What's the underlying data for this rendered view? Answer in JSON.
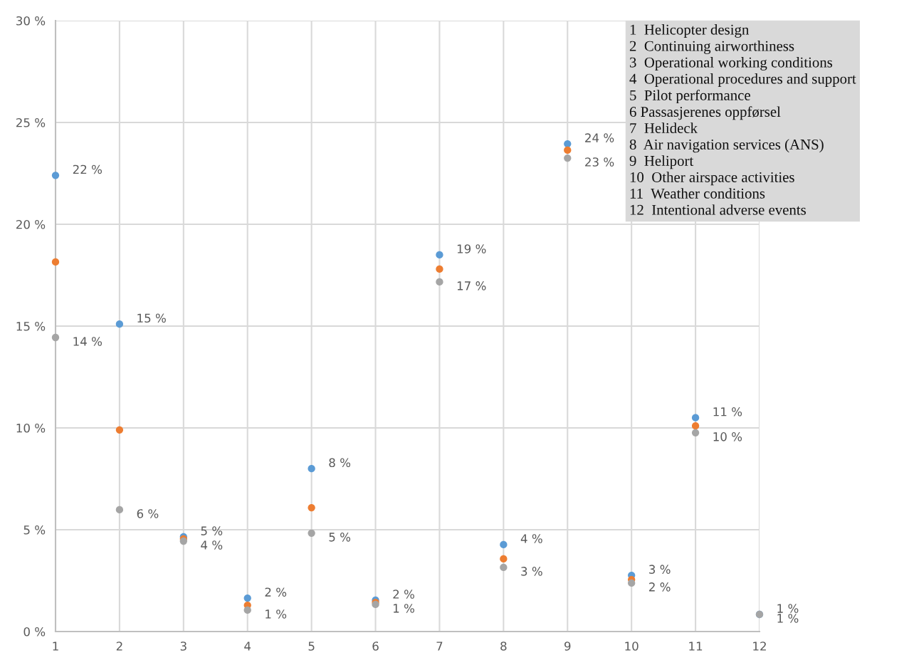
{
  "chart_data": {
    "type": "scatter",
    "x": [
      1,
      2,
      3,
      4,
      5,
      6,
      7,
      8,
      9,
      10,
      11,
      12
    ],
    "series": [
      {
        "color": "#5b9bd5",
        "values": [
          22.4,
          15.1,
          4.65,
          1.64,
          8.0,
          1.54,
          18.5,
          4.27,
          23.95,
          2.76,
          10.5,
          0.84
        ],
        "value_labels": [
          "22 %",
          "15 %",
          "5 %",
          "2 %",
          "8 %",
          "2 %",
          "19 %",
          "4 %",
          "24 %",
          "3 %",
          "11 %",
          "1 %"
        ]
      },
      {
        "color": "#ed7d31",
        "values": [
          18.15,
          9.9,
          4.55,
          1.29,
          6.08,
          1.43,
          17.8,
          3.57,
          23.64,
          2.55,
          10.1,
          null
        ]
      },
      {
        "color": "#a5a5a5",
        "values": [
          14.44,
          5.98,
          4.44,
          1.05,
          4.83,
          1.33,
          17.17,
          3.15,
          23.25,
          2.38,
          9.76,
          0.84
        ],
        "value_labels": [
          "14 %",
          "6 %",
          "4 %",
          "1 %",
          "5 %",
          "1 %",
          "17 %",
          "3 %",
          "23 %",
          "2 %",
          "10 %",
          "1 %"
        ]
      }
    ],
    "xlim": [
      1,
      12
    ],
    "xticks": [
      1,
      2,
      3,
      4,
      5,
      6,
      7,
      8,
      9,
      10,
      11,
      12
    ],
    "ylim": [
      0,
      30
    ],
    "yticks": [
      {
        "value": 0,
        "label": "0 %"
      },
      {
        "value": 5,
        "label": "5 %"
      },
      {
        "value": 10,
        "label": "10 %"
      },
      {
        "value": 15,
        "label": "15 %"
      },
      {
        "value": 20,
        "label": "20 %"
      },
      {
        "value": 25,
        "label": "25 %"
      },
      {
        "value": 30,
        "label": "30 %"
      }
    ],
    "grid": true,
    "marker": "circle",
    "legend": false,
    "annotations": [
      "1  Helicopter design",
      "2  Continuing airworthiness",
      "3  Operational working conditions",
      "4  Operational procedures and support",
      "5  Pilot performance",
      "6 Passasjerenes oppførsel",
      "7  Helideck",
      "8  Air navigation services (ANS)",
      "9  Heliport",
      "10  Other airspace activities",
      "11  Weather conditions",
      "12  Intentional adverse events"
    ]
  }
}
